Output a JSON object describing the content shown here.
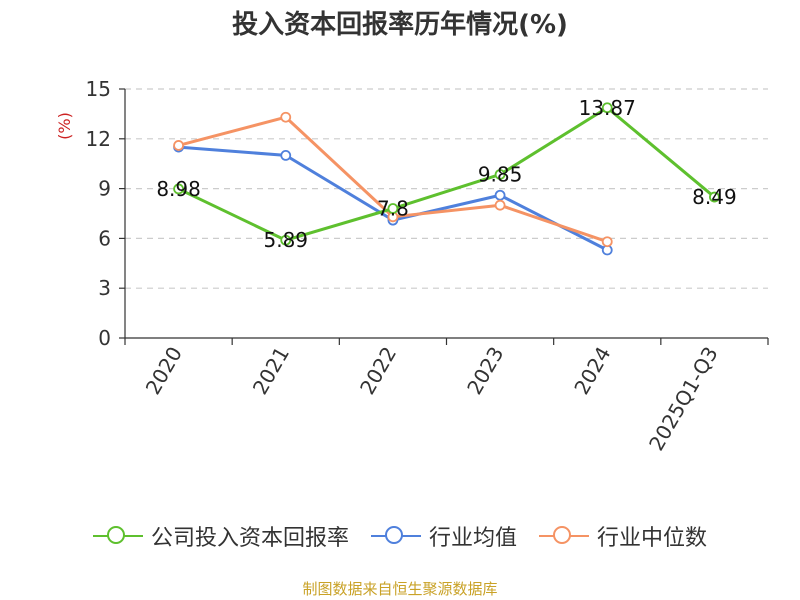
{
  "chart_data": {
    "type": "line",
    "title": "投入资本回报率历年情况(%)",
    "ylabel": "(%)",
    "categories": [
      "2020",
      "2021",
      "2022",
      "2023",
      "2024",
      "2025Q1-Q3"
    ],
    "ylim": [
      0,
      15
    ],
    "yticks": [
      "0",
      "3",
      "6",
      "9",
      "12",
      "15"
    ],
    "grid": true,
    "legend_position": "bottom",
    "series": [
      {
        "name": "公司投入资本回报率",
        "color": "#5ec02e",
        "values": [
          8.98,
          5.89,
          7.8,
          9.85,
          13.87,
          8.49
        ],
        "labels": [
          "8.98",
          "5.89",
          "7.8",
          "9.85",
          "13.87",
          "8.49"
        ]
      },
      {
        "name": "行业均值",
        "color": "#4f80dc",
        "values": [
          11.5,
          11.0,
          7.1,
          8.6,
          5.3,
          null
        ]
      },
      {
        "name": "行业中位数",
        "color": "#f59364",
        "values": [
          11.6,
          13.3,
          7.3,
          8.0,
          5.8,
          null
        ]
      }
    ]
  },
  "source": "制图数据来自恒生聚源数据库"
}
